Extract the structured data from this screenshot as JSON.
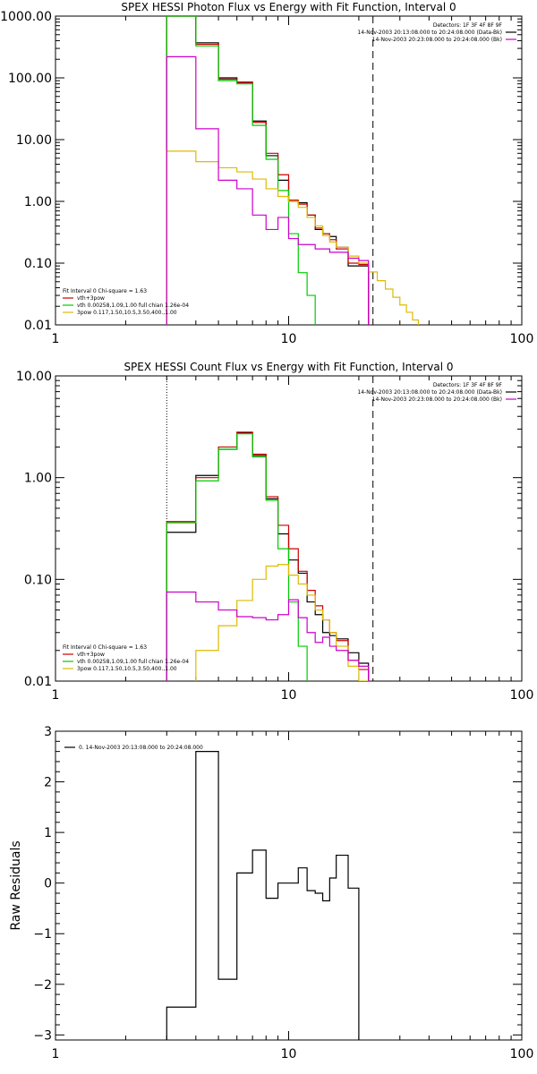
{
  "chart_data": [
    {
      "type": "line",
      "title": "SPEX HESSI Photon Flux vs Energy with Fit Function, Interval 0",
      "xlabel": "",
      "ylabel": "",
      "xscale": "log",
      "yscale": "log",
      "xlim": [
        1,
        100
      ],
      "ylim": [
        0.01,
        1000
      ],
      "x_ticks": [
        "1",
        "10",
        "100"
      ],
      "y_ticks": [
        "1000.00",
        "100.00",
        "10.00",
        "1.00",
        "0.10",
        "0.01"
      ],
      "dotted_line_x": 3.0,
      "dashed_line_x": 23.0,
      "info": [
        "Detectors: 1F 3F 4F 8F 9F",
        "14-Nov-2003 20:13:08.000 to 20:24:08.000 (Data-Bk)",
        "14-Nov-2003 20:23:08.000 to 20:24:08.000 (Bk)"
      ],
      "info_colors": [
        "#000000",
        "#cc00cc"
      ],
      "legend": [
        "Fit Interval 0   Chi-square = 1.63",
        "vth+3pow",
        "vth 0.00258,1.09,1.00  full chian 1.26e-04",
        "3pow 0.117,1.50,10.5,3.50,400.,1.00"
      ],
      "legend_colors": [
        "",
        "#cc0000",
        "#00cc00",
        "#ddbb00"
      ],
      "series": [
        {
          "name": "Data-Bk",
          "color": "#000000",
          "edges": [
            3,
            4,
            5,
            6,
            7,
            8,
            9,
            10,
            11,
            12,
            13,
            14,
            15,
            16,
            18,
            20,
            22
          ],
          "values": [
            1000,
            370,
            100,
            85,
            20,
            5.5,
            2.2,
            1.0,
            0.95,
            0.6,
            0.35,
            0.3,
            0.27,
            0.18,
            0.09,
            0.09
          ]
        },
        {
          "name": "vth+3pow",
          "color": "#cc0000",
          "edges": [
            3,
            4,
            5,
            6,
            7,
            8,
            9,
            10,
            11,
            12,
            13,
            14,
            15,
            16,
            18,
            20,
            22
          ],
          "values": [
            1000,
            350,
            95,
            83,
            19,
            6,
            2.7,
            1.05,
            0.9,
            0.6,
            0.37,
            0.3,
            0.24,
            0.17,
            0.1,
            0.095
          ]
        },
        {
          "name": "vth",
          "color": "#00cc00",
          "edges": [
            3,
            4,
            5,
            6,
            7,
            8,
            9,
            10,
            11,
            12,
            13,
            14
          ],
          "values": [
            1000,
            330,
            90,
            80,
            17,
            4.8,
            1.5,
            0.3,
            0.07,
            0.03,
            0.005
          ]
        },
        {
          "name": "3pow",
          "color": "#ddbb00",
          "edges": [
            3,
            4,
            5,
            6,
            7,
            8,
            9,
            10,
            11,
            12,
            13,
            14,
            15,
            16,
            18,
            20,
            22,
            24,
            26,
            28,
            30,
            32,
            34,
            36,
            38,
            40
          ],
          "values": [
            6.5,
            4.4,
            3.5,
            3.0,
            2.3,
            1.6,
            1.2,
            1.0,
            0.8,
            0.55,
            0.4,
            0.28,
            0.22,
            0.18,
            0.13,
            0.1,
            0.072,
            0.052,
            0.038,
            0.028,
            0.021,
            0.016,
            0.012,
            0.0098,
            0.0075
          ]
        },
        {
          "name": "Bk",
          "color": "#cc00cc",
          "edges": [
            3,
            4,
            5,
            6,
            7,
            8,
            9,
            10,
            11,
            12,
            13,
            14,
            15,
            16,
            18,
            20,
            22
          ],
          "values": [
            220,
            15,
            2.2,
            1.6,
            0.6,
            0.35,
            0.55,
            0.25,
            0.2,
            0.2,
            0.17,
            0.17,
            0.15,
            0.15,
            0.12,
            0.11
          ]
        }
      ]
    },
    {
      "type": "line",
      "title": "SPEX HESSI Count Flux vs Energy with Fit Function, Interval 0",
      "xlabel": "",
      "ylabel": "",
      "xscale": "log",
      "yscale": "log",
      "xlim": [
        1,
        100
      ],
      "ylim": [
        0.01,
        10
      ],
      "x_ticks": [
        "1",
        "10",
        "100"
      ],
      "y_ticks": [
        "10.00",
        "1.00",
        "0.10",
        "0.01"
      ],
      "dotted_line_x": 3.0,
      "dashed_line_x": 23.0,
      "info": [
        "Detectors: 1F 3F 4F 8F 9F",
        "14-Nov-2003 20:13:08.000 to 20:24:08.000 (Data-Bk)",
        "14-Nov-2003 20:23:08.000 to 20:24:08.000 (Bk)"
      ],
      "info_colors": [
        "#000000",
        "#cc00cc"
      ],
      "legend": [
        "Fit Interval 0   Chi-square = 1.63",
        "vth+3pow",
        "vth 0.00258,1.09,1.00  full chian 1.26e-04",
        "3pow 0.117,1.50,10.5,3.50,400.,1.00"
      ],
      "legend_colors": [
        "",
        "#cc0000",
        "#00cc00",
        "#ddbb00"
      ],
      "series": [
        {
          "name": "Data-Bk",
          "color": "#000000",
          "edges": [
            3,
            4,
            5,
            6,
            7,
            8,
            9,
            10,
            11,
            12,
            13,
            14,
            15,
            16,
            18,
            20,
            22
          ],
          "values": [
            0.29,
            1.05,
            1.9,
            2.75,
            1.65,
            0.62,
            0.28,
            0.155,
            0.115,
            0.06,
            0.045,
            0.03,
            0.028,
            0.026,
            0.019,
            0.015
          ]
        },
        {
          "name": "vth+3pow",
          "color": "#cc0000",
          "edges": [
            3,
            4,
            5,
            6,
            7,
            8,
            9,
            10,
            11,
            12,
            13,
            14,
            15,
            16,
            18,
            20,
            22
          ],
          "values": [
            0.37,
            1.0,
            2.0,
            2.8,
            1.7,
            0.65,
            0.34,
            0.2,
            0.12,
            0.078,
            0.055,
            0.04,
            0.03,
            0.025,
            0.016,
            0.013
          ]
        },
        {
          "name": "vth",
          "color": "#00cc00",
          "edges": [
            3,
            4,
            5,
            6,
            7,
            8,
            9,
            10,
            11,
            12,
            13
          ],
          "values": [
            0.36,
            0.93,
            1.9,
            2.7,
            1.6,
            0.6,
            0.2,
            0.06,
            0.022,
            0.009
          ]
        },
        {
          "name": "3pow",
          "color": "#ddbb00",
          "edges": [
            3,
            4,
            5,
            6,
            7,
            8,
            9,
            10,
            11,
            12,
            13,
            14,
            15,
            16,
            18,
            20,
            22
          ],
          "values": [
            0.0095,
            0.02,
            0.035,
            0.062,
            0.1,
            0.135,
            0.14,
            0.11,
            0.09,
            0.07,
            0.05,
            0.04,
            0.03,
            0.022,
            0.014,
            0.01
          ]
        },
        {
          "name": "Bk",
          "color": "#cc00cc",
          "edges": [
            3,
            4,
            5,
            6,
            7,
            8,
            9,
            10,
            11,
            12,
            13,
            14,
            15,
            16,
            18,
            20,
            22
          ],
          "values": [
            0.075,
            0.06,
            0.05,
            0.043,
            0.042,
            0.04,
            0.045,
            0.063,
            0.042,
            0.03,
            0.024,
            0.027,
            0.022,
            0.02,
            0.016,
            0.014
          ]
        }
      ]
    },
    {
      "type": "line",
      "title": "",
      "xlabel": "",
      "ylabel": "Raw Residuals",
      "xscale": "log",
      "yscale": "linear",
      "xlim": [
        1,
        100
      ],
      "ylim": [
        -3.1,
        3
      ],
      "x_ticks": [
        "1",
        "10",
        "100"
      ],
      "y_ticks": [
        "3",
        "2",
        "1",
        "0",
        "−1",
        "−2",
        "−3"
      ],
      "legend": [
        "0. 14-Nov-2003 20:13:08.000 to 20:24:08.000"
      ],
      "series": [
        {
          "name": "0. 14-Nov-2003 20:13:08.000 to 20:24:08.000",
          "color": "#000000",
          "edges": [
            3,
            4,
            5,
            6,
            7,
            8,
            9,
            10,
            11,
            12,
            13,
            14,
            15,
            16,
            18,
            20,
            22
          ],
          "values": [
            -2.45,
            2.6,
            -1.9,
            0.2,
            0.65,
            -0.3,
            0.0,
            0.0,
            0.3,
            -0.15,
            -0.2,
            -0.35,
            0.1,
            0.55,
            -0.1,
            -3.2
          ]
        }
      ]
    }
  ]
}
